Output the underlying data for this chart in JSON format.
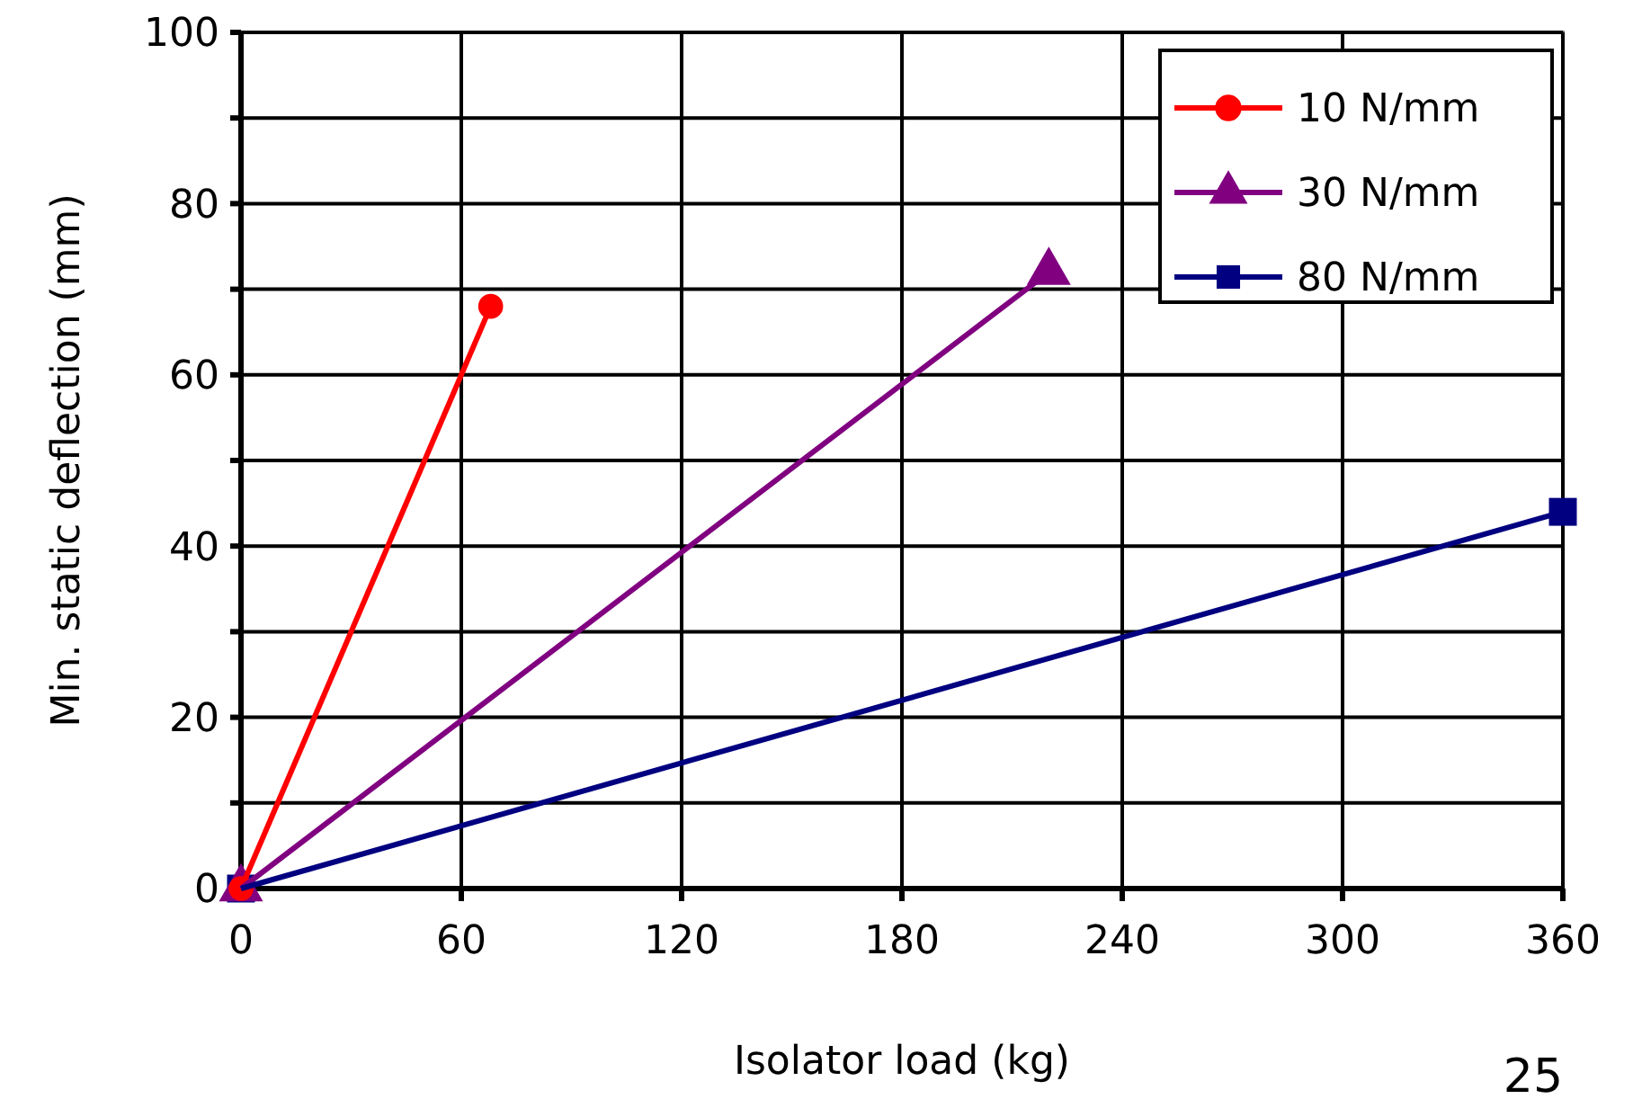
{
  "chart_data": {
    "type": "line",
    "xlabel": "Isolator load (kg)",
    "ylabel": "Min. static deflection (mm)",
    "xlim": [
      0,
      360
    ],
    "xticks": [
      0,
      60,
      120,
      180,
      240,
      300,
      360
    ],
    "ylim": [
      0,
      100
    ],
    "yticks": [
      0,
      {
        "value": 10,
        "label": null
      },
      20,
      {
        "value": 30,
        "label": null
      },
      40,
      {
        "value": 50,
        "label": null
      },
      60,
      {
        "value": 70,
        "label": null
      },
      80,
      {
        "value": 90,
        "label": null
      },
      100
    ],
    "grid": true,
    "legend": "top right",
    "line_style": "solid",
    "series": [
      {
        "name": "10 N/mm",
        "color": "#ff0000",
        "marker": "circle",
        "x": [
          0,
          68
        ],
        "values": [
          0,
          68
        ]
      },
      {
        "name": "30 N/mm",
        "color": "#800080",
        "marker": "triangle",
        "x": [
          0,
          220
        ],
        "values": [
          0,
          72
        ]
      },
      {
        "name": "80 N/mm",
        "color": "#000080",
        "marker": "square",
        "x": [
          0,
          360
        ],
        "values": [
          0,
          44
        ]
      }
    ],
    "annotations": [
      "25"
    ]
  }
}
